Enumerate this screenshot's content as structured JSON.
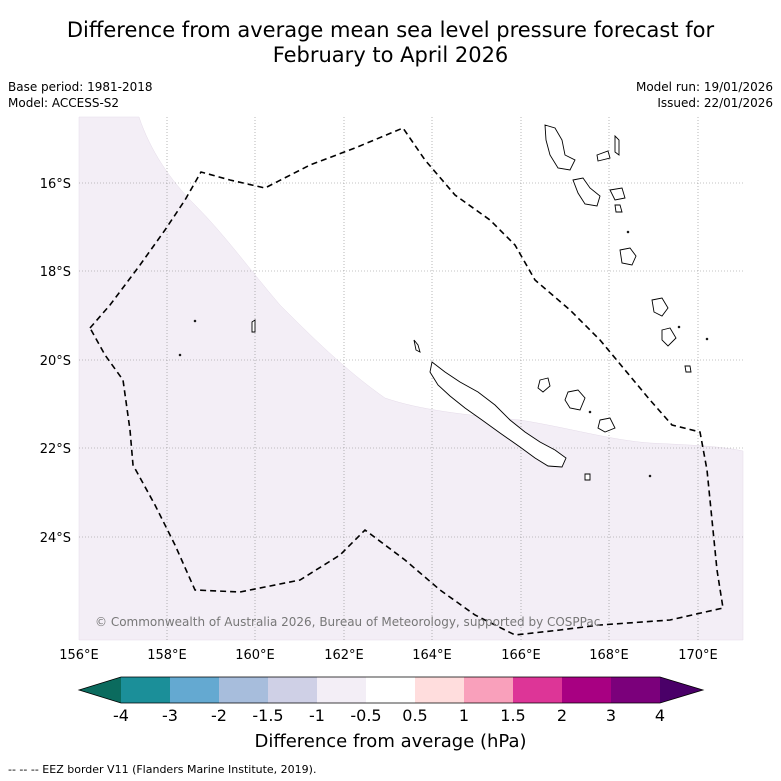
{
  "title": {
    "line1": "Difference from average mean sea level pressure forecast for",
    "line2": "February to April 2026"
  },
  "meta": {
    "base_period": "Base period: 1981-2018",
    "model": "Model: ACCESS-S2",
    "model_run": "Model run: 19/01/2026",
    "issued": "Issued: 22/01/2026"
  },
  "axes": {
    "lat_labels": [
      "16°S",
      "18°S",
      "20°S",
      "22°S",
      "24°S"
    ],
    "lon_labels": [
      "156°E",
      "158°E",
      "160°E",
      "162°E",
      "164°E",
      "166°E",
      "168°E",
      "170°E"
    ]
  },
  "copyright": "© Commonwealth of Australia 2026, Bureau of Meteorology, supported by COSPPac",
  "colorbar": {
    "labels": [
      "-4",
      "-3",
      "-2",
      "-1.5",
      "-1",
      "-0.5",
      "0.5",
      "1",
      "1.5",
      "2",
      "3",
      "4"
    ],
    "colors": {
      "under": "#0b6b5e",
      "bins": [
        "#1b8f99",
        "#64a9d1",
        "#a7bddc",
        "#cfd0e6",
        "#f3eef6",
        "#ffffff",
        "#ffdddd",
        "#f9a0bb",
        "#dd3597",
        "#a80082",
        "#7b007b"
      ],
      "over": "#4a0068"
    },
    "title": "Difference from average (hPa)"
  },
  "footnote": "--  --  -- EEZ border V11 (Flanders Marine Institute, 2019).",
  "colors": {
    "shading": "#f3eef6",
    "grid": "#888888",
    "eez": "#000000"
  }
}
